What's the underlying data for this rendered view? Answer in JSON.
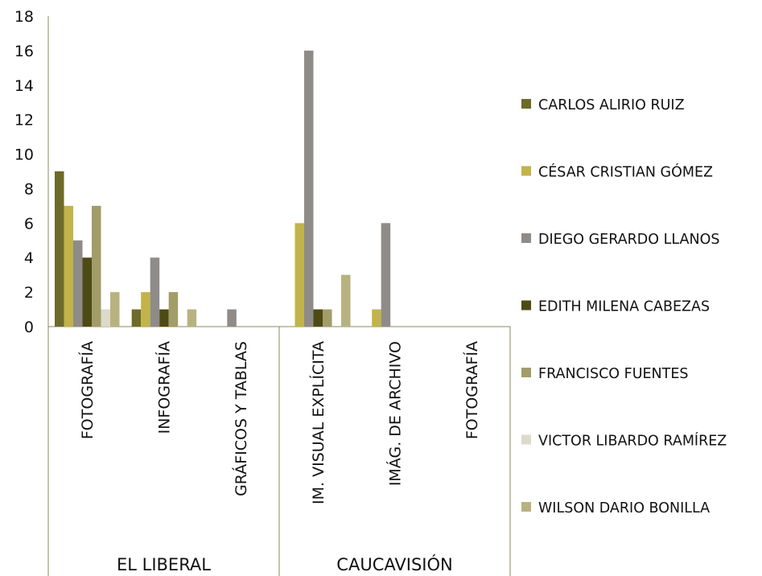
{
  "chart_data": {
    "type": "bar",
    "title": "",
    "xlabel": "",
    "ylabel": "",
    "ylim": [
      0,
      18
    ],
    "yticks": [
      0,
      2,
      4,
      6,
      8,
      10,
      12,
      14,
      16,
      18
    ],
    "grid": false,
    "legend_position": "right",
    "groups": [
      {
        "label": "EL LIBERAL",
        "categories": [
          "FOTOGRAFÍA",
          "INFOGRAFÍA",
          "GRÁFICOS Y TABLAS"
        ]
      },
      {
        "label": "CAUCAVISIÓN",
        "categories": [
          "IM. VISUAL EXPLÍCITA",
          "IMÁG. DE ARCHIVO",
          "FOTOGRAFÍA"
        ]
      }
    ],
    "categories": [
      "FOTOGRAFÍA",
      "INFOGRAFÍA",
      "GRÁFICOS Y TABLAS",
      "IM. VISUAL EXPLÍCITA",
      "IMÁG. DE ARCHIVO",
      "FOTOGRAFÍA"
    ],
    "series": [
      {
        "name": "CARLOS ALIRIO RUIZ",
        "color": "#6e6a2a",
        "values": [
          9,
          1,
          0,
          0,
          0,
          0
        ]
      },
      {
        "name": "CÉSAR CRISTIAN GÓMEZ",
        "color": "#c2b34a",
        "values": [
          7,
          2,
          0,
          6,
          1,
          0
        ]
      },
      {
        "name": "DIEGO GERARDO LLANOS",
        "color": "#8f8b88",
        "values": [
          5,
          4,
          1,
          16,
          6,
          0
        ]
      },
      {
        "name": "EDITH MILENA CABEZAS",
        "color": "#4d4a14",
        "values": [
          4,
          1,
          0,
          1,
          0,
          0
        ]
      },
      {
        "name": "FRANCISCO FUENTES",
        "color": "#a29c68",
        "values": [
          7,
          2,
          0,
          1,
          0,
          0
        ]
      },
      {
        "name": "VICTOR LIBARDO RAMÍREZ",
        "color": "#dcdac8",
        "values": [
          1,
          0,
          0,
          0,
          0,
          0
        ]
      },
      {
        "name": "WILSON DARIO BONILLA",
        "color": "#b8b280",
        "values": [
          2,
          1,
          0,
          3,
          0,
          0
        ]
      }
    ]
  },
  "colors": {
    "axis": "#8c8a5a",
    "text": "#111111"
  }
}
